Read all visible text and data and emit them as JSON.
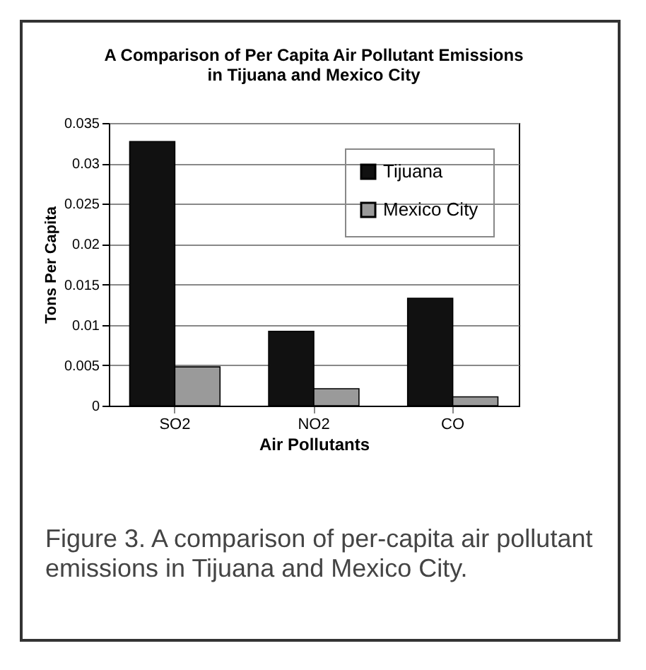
{
  "chart_data": {
    "type": "bar",
    "title": "A Comparison of Per Capita Air Pollutant Emissions in Tijuana and Mexico City",
    "xlabel": "Air Pollutants",
    "ylabel": "Tons Per Capita",
    "categories": [
      "SO2",
      "NO2",
      "CO"
    ],
    "series": [
      {
        "name": "Tijuana",
        "color": "#111111",
        "values": [
          0.0327,
          0.0092,
          0.0133
        ]
      },
      {
        "name": "Mexico City",
        "color": "#9a9a9a",
        "values": [
          0.0048,
          0.0021,
          0.0011
        ]
      }
    ],
    "ylim": [
      0,
      0.035
    ],
    "yticks": [
      0,
      0.005,
      0.01,
      0.015,
      0.02,
      0.025,
      0.03,
      0.035
    ],
    "grid": "y",
    "legend": "top right",
    "annotations": [
      "Figure 3. A comparison of per-capita air pollutant emissions in Tijuana and Mexico City."
    ]
  }
}
